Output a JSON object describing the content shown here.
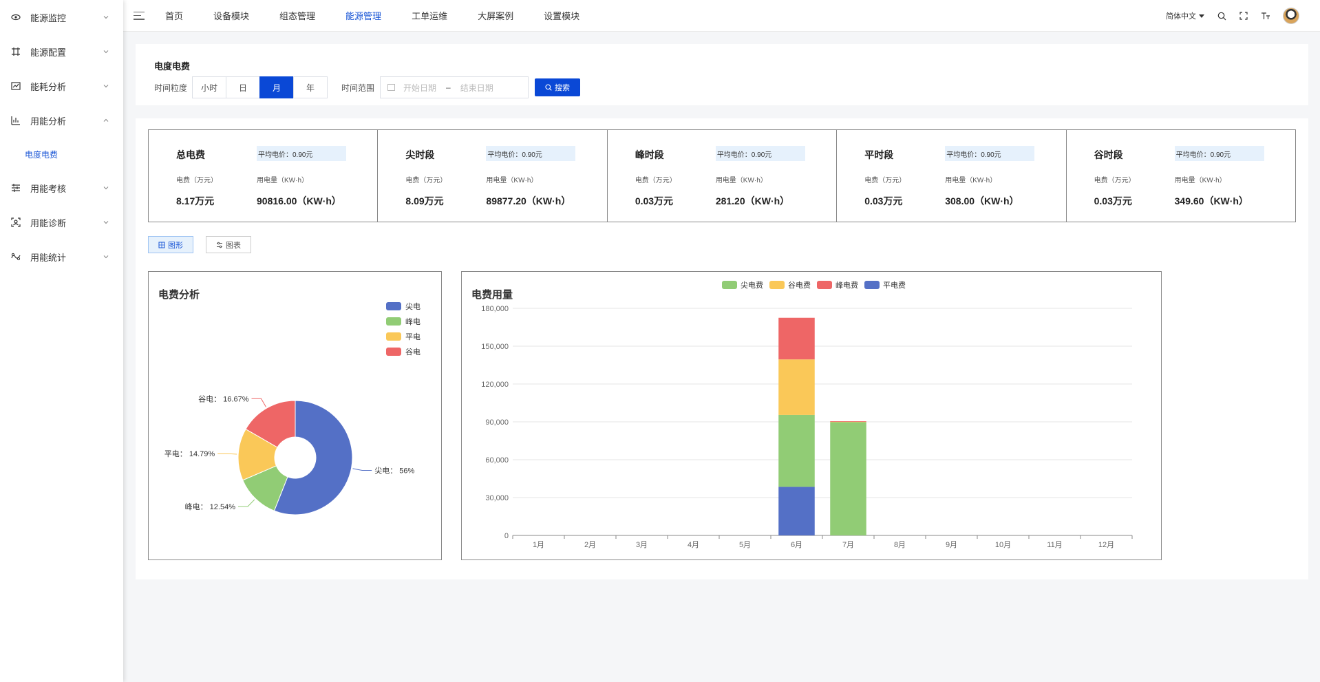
{
  "sidebar": {
    "items": [
      {
        "label": "能源监控",
        "icon": "eye-icon"
      },
      {
        "label": "能源配置",
        "icon": "config-icon"
      },
      {
        "label": "能耗分析",
        "icon": "chart-icon"
      },
      {
        "label": "用能分析",
        "icon": "analysis-icon",
        "expanded": true,
        "sub": [
          {
            "label": "电度电费",
            "active": true
          }
        ]
      },
      {
        "label": "用能考核",
        "icon": "list-icon"
      },
      {
        "label": "用能诊断",
        "icon": "diagnose-icon"
      },
      {
        "label": "用能统计",
        "icon": "wave-icon"
      }
    ]
  },
  "topnav": {
    "items": [
      "首页",
      "设备模块",
      "组态管理",
      "能源管理",
      "工单运维",
      "大屏案例",
      "设置模块"
    ],
    "active": "能源管理",
    "language": "简体中文"
  },
  "filter": {
    "title": "电度电费",
    "granularity_label": "时间粒度",
    "granularity_options": [
      "小时",
      "日",
      "月",
      "年"
    ],
    "granularity_selected": "月",
    "range_label": "时间范围",
    "start_placeholder": "开始日期",
    "range_separator": "–",
    "end_placeholder": "结束日期",
    "search_label": "搜索"
  },
  "stats": [
    {
      "name": "总电费",
      "avg": "平均电价：0.90元",
      "fee_label": "电费（万元）",
      "usage_label": "用电量（KW·h）",
      "fee": "8.17万元",
      "usage": "90816.00（KW·h）"
    },
    {
      "name": "尖时段",
      "avg": "平均电价：0.90元",
      "fee_label": "电费（万元）",
      "usage_label": "用电量（KW·h）",
      "fee": "8.09万元",
      "usage": "89877.20（KW·h）"
    },
    {
      "name": "峰时段",
      "avg": "平均电价：0.90元",
      "fee_label": "电费（万元）",
      "usage_label": "用电量（KW·h）",
      "fee": "0.03万元",
      "usage": "281.20（KW·h）"
    },
    {
      "name": "平时段",
      "avg": "平均电价：0.90元",
      "fee_label": "电费（万元）",
      "usage_label": "用电量（KW·h）",
      "fee": "0.03万元",
      "usage": "308.00（KW·h）"
    },
    {
      "name": "谷时段",
      "avg": "平均电价：0.90元",
      "fee_label": "电费（万元）",
      "usage_label": "用电量（KW·h）",
      "fee": "0.03万元",
      "usage": "349.60（KW·h）"
    }
  ],
  "view_toggle": {
    "graph": "图形",
    "table": "图表",
    "active": "graph"
  },
  "chart_data": [
    {
      "type": "pie",
      "title": "电费分析",
      "legend_position": "top-right",
      "slices": [
        {
          "name": "尖电",
          "label": "尖电：",
          "pct_text": "56%",
          "value": 56.0,
          "color": "#5470c6"
        },
        {
          "name": "峰电",
          "label": "峰电：",
          "pct_text": "12.54%",
          "value": 12.54,
          "color": "#91cc75"
        },
        {
          "name": "平电",
          "label": "平电：",
          "pct_text": "14.79%",
          "value": 14.79,
          "color": "#fac858"
        },
        {
          "name": "谷电",
          "label": "谷电：",
          "pct_text": "16.67%",
          "value": 16.67,
          "color": "#ee6666"
        }
      ]
    },
    {
      "type": "bar",
      "stacked": true,
      "title": "电费用量",
      "legend_position": "top-center",
      "categories": [
        "1月",
        "2月",
        "3月",
        "4月",
        "5月",
        "6月",
        "7月",
        "8月",
        "9月",
        "10月",
        "11月",
        "12月"
      ],
      "ylim": [
        0,
        180000
      ],
      "yticks": [
        "0",
        "30,000",
        "60,000",
        "90,000",
        "120,000",
        "150,000",
        "180,000"
      ],
      "ytick_values": [
        0,
        30000,
        60000,
        90000,
        120000,
        150000,
        180000
      ],
      "grid": true,
      "series": [
        {
          "name": "平电费",
          "color": "#5470c6",
          "values": [
            0,
            0,
            0,
            0,
            0,
            38500,
            0,
            0,
            0,
            0,
            0,
            0
          ]
        },
        {
          "name": "尖电费",
          "color": "#91cc75",
          "values": [
            0,
            0,
            0,
            0,
            0,
            57000,
            89877,
            0,
            0,
            0,
            0,
            0
          ]
        },
        {
          "name": "谷电费",
          "color": "#fac858",
          "values": [
            0,
            0,
            0,
            0,
            0,
            44000,
            350,
            0,
            0,
            0,
            0,
            0
          ]
        },
        {
          "name": "峰电费",
          "color": "#ee6666",
          "values": [
            0,
            0,
            0,
            0,
            0,
            33000,
            281,
            0,
            0,
            0,
            0,
            0
          ]
        }
      ],
      "legend_order": [
        "尖电费",
        "谷电费",
        "峰电费",
        "平电费"
      ]
    }
  ]
}
